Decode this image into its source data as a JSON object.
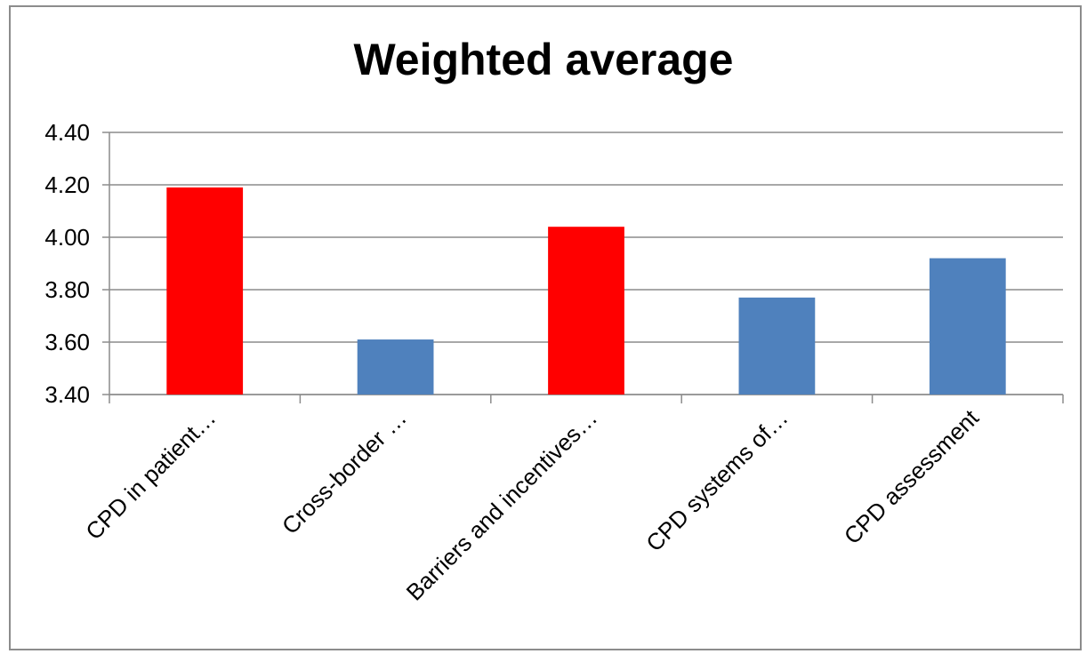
{
  "chart_data": {
    "type": "bar",
    "title": "Weighted average",
    "xlabel": "",
    "ylabel": "",
    "categories": [
      "CPD in patient…",
      "Cross-border …",
      "Barriers and incentives…",
      "CPD systems of…",
      "CPD assessment"
    ],
    "values": [
      4.19,
      3.61,
      4.04,
      3.77,
      3.92
    ],
    "bar_colors": [
      "#ff0000",
      "#4f81bd",
      "#ff0000",
      "#4f81bd",
      "#4f81bd"
    ],
    "ylim": [
      3.4,
      4.4
    ],
    "yticks": [
      "3.40",
      "3.60",
      "3.80",
      "4.00",
      "4.20",
      "4.40"
    ],
    "grid": true,
    "legend": "none"
  }
}
